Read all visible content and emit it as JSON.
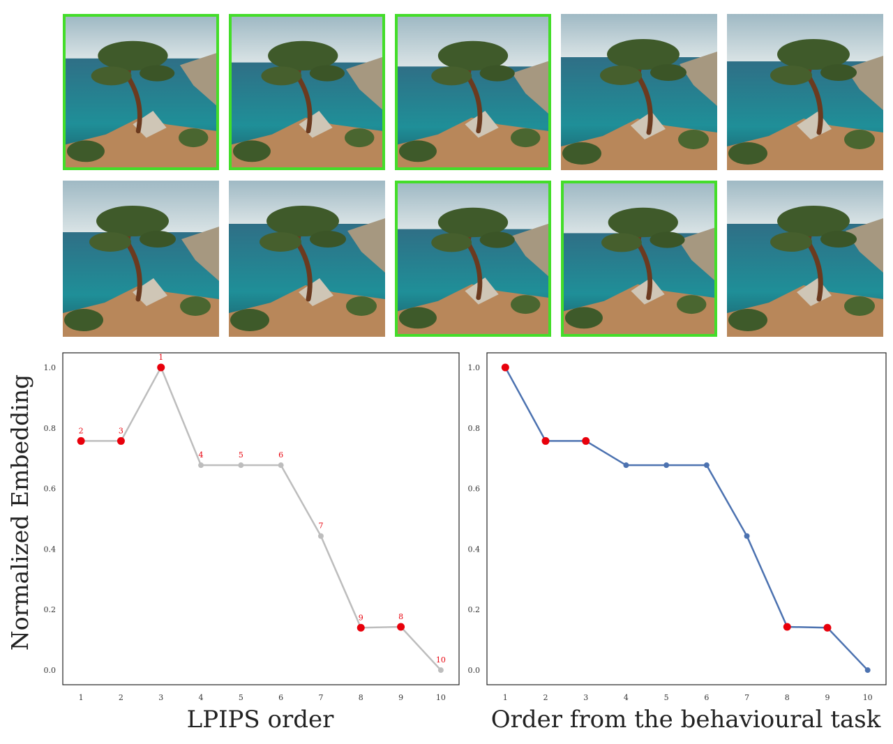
{
  "images": {
    "row1_selected": [
      true,
      true,
      true,
      false,
      false
    ],
    "row2_selected": [
      false,
      false,
      true,
      true,
      false
    ],
    "selection_color": "#44dd2a",
    "subject": "tree-on-sea-cliff"
  },
  "y_axis_label": "Normalized Embedding",
  "chart_data": [
    {
      "type": "line",
      "xlabel": "LPIPS order",
      "ylabel": "Normalized Embedding",
      "x": [
        1,
        2,
        3,
        4,
        5,
        6,
        7,
        8,
        9,
        10
      ],
      "y": [
        0.757,
        0.757,
        1.0,
        0.677,
        0.677,
        0.677,
        0.443,
        0.14,
        0.143,
        0.0
      ],
      "point_labels": [
        "2",
        "3",
        "1",
        "4",
        "5",
        "6",
        "7",
        "9",
        "8",
        "10"
      ],
      "highlighted": [
        true,
        true,
        true,
        false,
        false,
        false,
        false,
        true,
        true,
        false
      ],
      "line_color": "#bdbdbd",
      "marker_color": "#bdbdbd",
      "highlight_color": "#e8000b",
      "ylim": [
        0,
        1
      ],
      "yticks": [
        "0.0",
        "0.2",
        "0.4",
        "0.6",
        "0.8",
        "1.0"
      ],
      "xticks": [
        "1",
        "2",
        "3",
        "4",
        "5",
        "6",
        "7",
        "8",
        "9",
        "10"
      ]
    },
    {
      "type": "line",
      "xlabel": "Order from the behavioural task",
      "x": [
        1,
        2,
        3,
        4,
        5,
        6,
        7,
        8,
        9,
        10
      ],
      "y": [
        1.0,
        0.757,
        0.757,
        0.677,
        0.677,
        0.677,
        0.443,
        0.143,
        0.14,
        0.0
      ],
      "highlighted": [
        true,
        true,
        true,
        false,
        false,
        false,
        false,
        true,
        true,
        false
      ],
      "line_color": "#4c72b0",
      "marker_color": "#4c72b0",
      "highlight_color": "#e8000b",
      "ylim": [
        0,
        1
      ],
      "yticks": [
        "0.0",
        "0.2",
        "0.4",
        "0.6",
        "0.8",
        "1.0"
      ],
      "xticks": [
        "1",
        "2",
        "3",
        "4",
        "5",
        "6",
        "7",
        "8",
        "9",
        "10"
      ]
    }
  ]
}
